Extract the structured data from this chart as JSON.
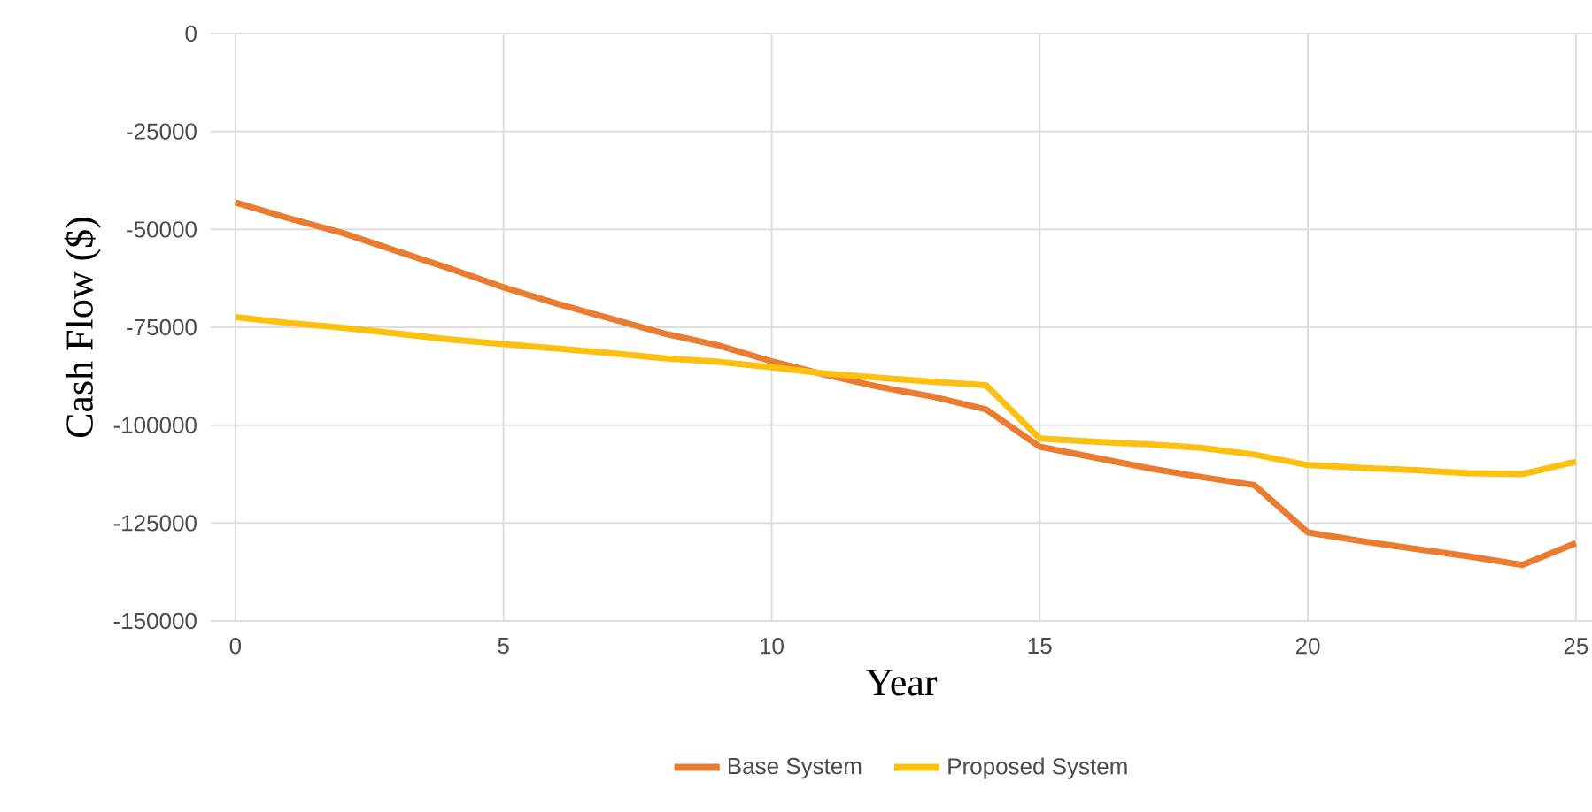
{
  "chart_data": {
    "type": "line",
    "xlabel": "Year",
    "ylabel": "Cash Flow ($)",
    "x": [
      0,
      1,
      2,
      3,
      4,
      5,
      6,
      7,
      8,
      9,
      10,
      11,
      12,
      13,
      14,
      15,
      16,
      17,
      18,
      19,
      20,
      21,
      22,
      23,
      24,
      25
    ],
    "series": [
      {
        "name": "Base System",
        "color": "#e97c31",
        "values": [
          -43100,
          -47200,
          -50900,
          -55500,
          -60000,
          -64800,
          -69000,
          -72800,
          -76600,
          -79600,
          -83700,
          -87100,
          -90200,
          -92700,
          -96000,
          -105500,
          -108200,
          -110900,
          -113200,
          -115300,
          -127400,
          -129600,
          -131600,
          -133500,
          -135700,
          -130100
        ]
      },
      {
        "name": "Proposed System",
        "color": "#fdc010",
        "values": [
          -72400,
          -73900,
          -75100,
          -76600,
          -78100,
          -79300,
          -80400,
          -81600,
          -82900,
          -83800,
          -85200,
          -86800,
          -87900,
          -88900,
          -89800,
          -103400,
          -104200,
          -104900,
          -105800,
          -107500,
          -110200,
          -110900,
          -111500,
          -112300,
          -112500,
          -109300
        ]
      }
    ],
    "xlim": [
      -0.46,
      25.3
    ],
    "ylim": [
      -150000,
      0
    ],
    "xticks": [
      0,
      5,
      10,
      15,
      20,
      25
    ],
    "yticks": [
      -150000,
      -125000,
      -100000,
      -75000,
      -50000,
      -25000,
      0
    ],
    "grid": true,
    "legend": "bottom",
    "line_style": "solid",
    "marker": "none"
  }
}
